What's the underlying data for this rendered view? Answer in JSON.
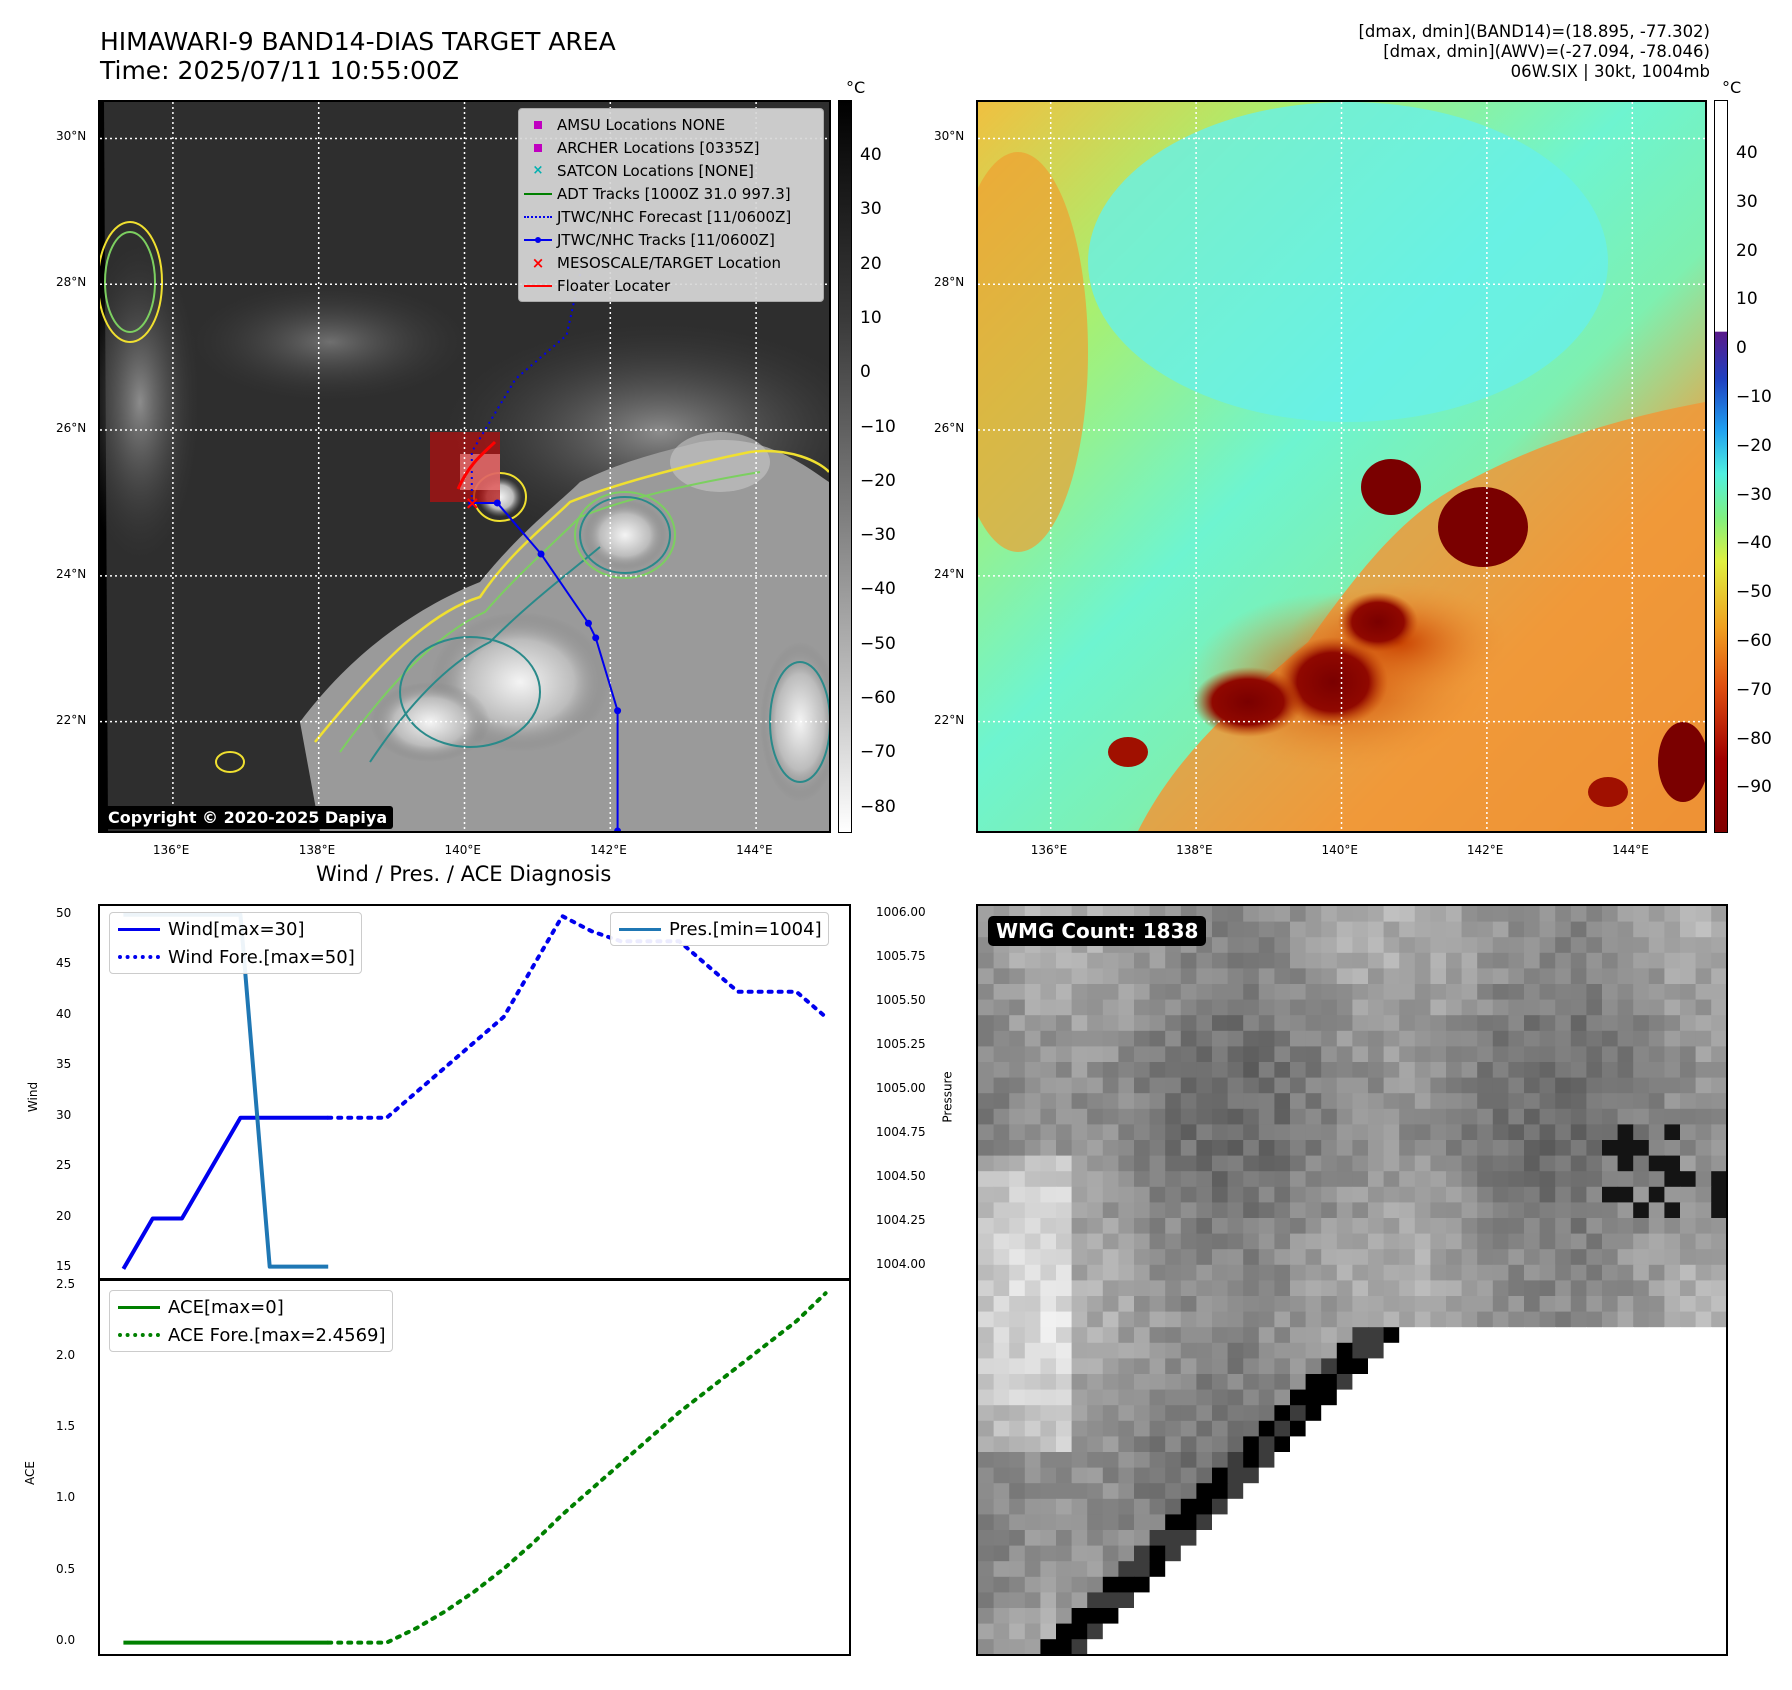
{
  "header": {
    "title_line1": "HIMAWARI-9 BAND14-DIAS TARGET AREA",
    "title_line2": "Time: 2025/07/11 10:55:00Z",
    "info_line1": "[dmax, dmin](BAND14)=(18.895, -77.302)",
    "info_line2": "[dmax, dmin](AWV)=(-27.094, -78.046)",
    "info_line3": "06W.SIX | 30kt, 1004mb"
  },
  "map": {
    "lon_labels": [
      "136°E",
      "138°E",
      "140°E",
      "142°E",
      "144°E"
    ],
    "lat_labels": [
      "30°N",
      "28°N",
      "26°N",
      "24°N",
      "22°N"
    ],
    "copyright": "Copyright © 2020-2025 Dapiya",
    "colorbar_unit": "°C",
    "ir_colorbar_ticks": [
      "40",
      "30",
      "20",
      "10",
      "0",
      "−10",
      "−20",
      "−30",
      "−40",
      "−50",
      "−60",
      "−70",
      "−80"
    ],
    "awv_colorbar_ticks": [
      "40",
      "30",
      "20",
      "10",
      "0",
      "−10",
      "−20",
      "−30",
      "−40",
      "−50",
      "−60",
      "−70",
      "−80",
      "−90"
    ],
    "legend": [
      {
        "label": "AMSU Locations NONE",
        "color": "#c000c0",
        "symbol": "square-marker"
      },
      {
        "label": "ARCHER Locations [0335Z]",
        "color": "#c000c0",
        "symbol": "square-marker"
      },
      {
        "label": "SATCON Locations [NONE]",
        "color": "#00b0b0",
        "symbol": "x-marker"
      },
      {
        "label": "ADT Tracks [1000Z 31.0 997.3]",
        "color": "#008000",
        "symbol": "solid-line"
      },
      {
        "label": "JTWC/NHC Forecast [11/0600Z]",
        "color": "#0000ee",
        "symbol": "dotted-line"
      },
      {
        "label": "JTWC/NHC Tracks [11/0600Z]",
        "color": "#0000ee",
        "symbol": "line-dot"
      },
      {
        "label": "MESOSCALE/TARGET Location",
        "color": "#ff0000",
        "symbol": "x-marker"
      },
      {
        "label": "Floater Locater",
        "color": "#ff0000",
        "symbol": "solid-line"
      }
    ],
    "track_points": [
      [
        140.1,
        25.0
      ],
      [
        140.45,
        25.0
      ],
      [
        141.05,
        24.3
      ],
      [
        141.7,
        23.35
      ],
      [
        141.8,
        23.15
      ],
      [
        142.1,
        22.15
      ],
      [
        142.1,
        20.5
      ]
    ],
    "forecast_track": [
      [
        140.1,
        25.0
      ],
      [
        140.1,
        25.7
      ],
      [
        140.7,
        26.7
      ],
      [
        141.4,
        27.3
      ],
      [
        141.6,
        28.2
      ]
    ]
  },
  "wmg": {
    "label": "WMG Count: 1838"
  },
  "diagnosis": {
    "title": "Wind / Pres. / ACE Diagnosis"
  },
  "chart_data": [
    {
      "type": "line",
      "title": "Wind / Pres. / ACE Diagnosis",
      "ylabel": "Wind",
      "ylabel_right": "Pressure",
      "ylim": [
        14,
        51
      ],
      "ylim_right": [
        1003.93,
        1006.05
      ],
      "yticks": [
        15,
        20,
        25,
        30,
        35,
        40,
        45,
        50
      ],
      "yticks_right": [
        "1004.00",
        "1004.25",
        "1004.50",
        "1004.75",
        "1005.00",
        "1005.25",
        "1005.50",
        "1005.75",
        "1006.00"
      ],
      "series": [
        {
          "name": "Wind[max=30]",
          "color": "#0000ee",
          "style": "solid",
          "x": [
            0,
            1,
            2,
            3,
            4,
            5,
            6,
            7
          ],
          "values": [
            15,
            20,
            20,
            25,
            30,
            30,
            30,
            30
          ]
        },
        {
          "name": "Wind Fore.[max=50]",
          "color": "#0000ee",
          "style": "dotted",
          "x": [
            7,
            8,
            9,
            10,
            11,
            12,
            13,
            14,
            15,
            16,
            17,
            18,
            19,
            20,
            21,
            22,
            23,
            24
          ],
          "values": [
            30,
            30,
            30,
            32.5,
            35,
            37.5,
            40,
            45,
            50,
            48.5,
            47.5,
            47.5,
            47.5,
            45,
            42.5,
            42.5,
            42.5,
            40
          ]
        },
        {
          "name": "Pres.[min=1004]",
          "color": "#1f77b4",
          "style": "solid",
          "axis": "right",
          "x": [
            0,
            1,
            2,
            3,
            4,
            5,
            6,
            7
          ],
          "values": [
            1006,
            1006,
            1006,
            1006,
            1006,
            1004,
            1004,
            1004
          ]
        }
      ]
    },
    {
      "type": "line",
      "ylabel": "ACE",
      "ylim": [
        -0.08,
        2.55
      ],
      "yticks": [
        "0.0",
        "0.5",
        "1.0",
        "1.5",
        "2.0",
        "2.5"
      ],
      "series": [
        {
          "name": "ACE[max=0]",
          "color": "#008000",
          "style": "solid",
          "x": [
            0,
            7
          ],
          "values": [
            0,
            0
          ]
        },
        {
          "name": "ACE Fore.[max=2.4569]",
          "color": "#008000",
          "style": "dotted",
          "x": [
            7,
            8,
            9,
            10,
            11,
            12,
            13,
            14,
            15,
            16,
            17,
            18,
            19,
            20,
            21,
            22,
            23,
            24
          ],
          "values": [
            0,
            0,
            0,
            0.1,
            0.22,
            0.36,
            0.52,
            0.7,
            0.9,
            1.08,
            1.26,
            1.44,
            1.62,
            1.78,
            1.94,
            2.1,
            2.26,
            2.4569
          ]
        }
      ]
    }
  ]
}
